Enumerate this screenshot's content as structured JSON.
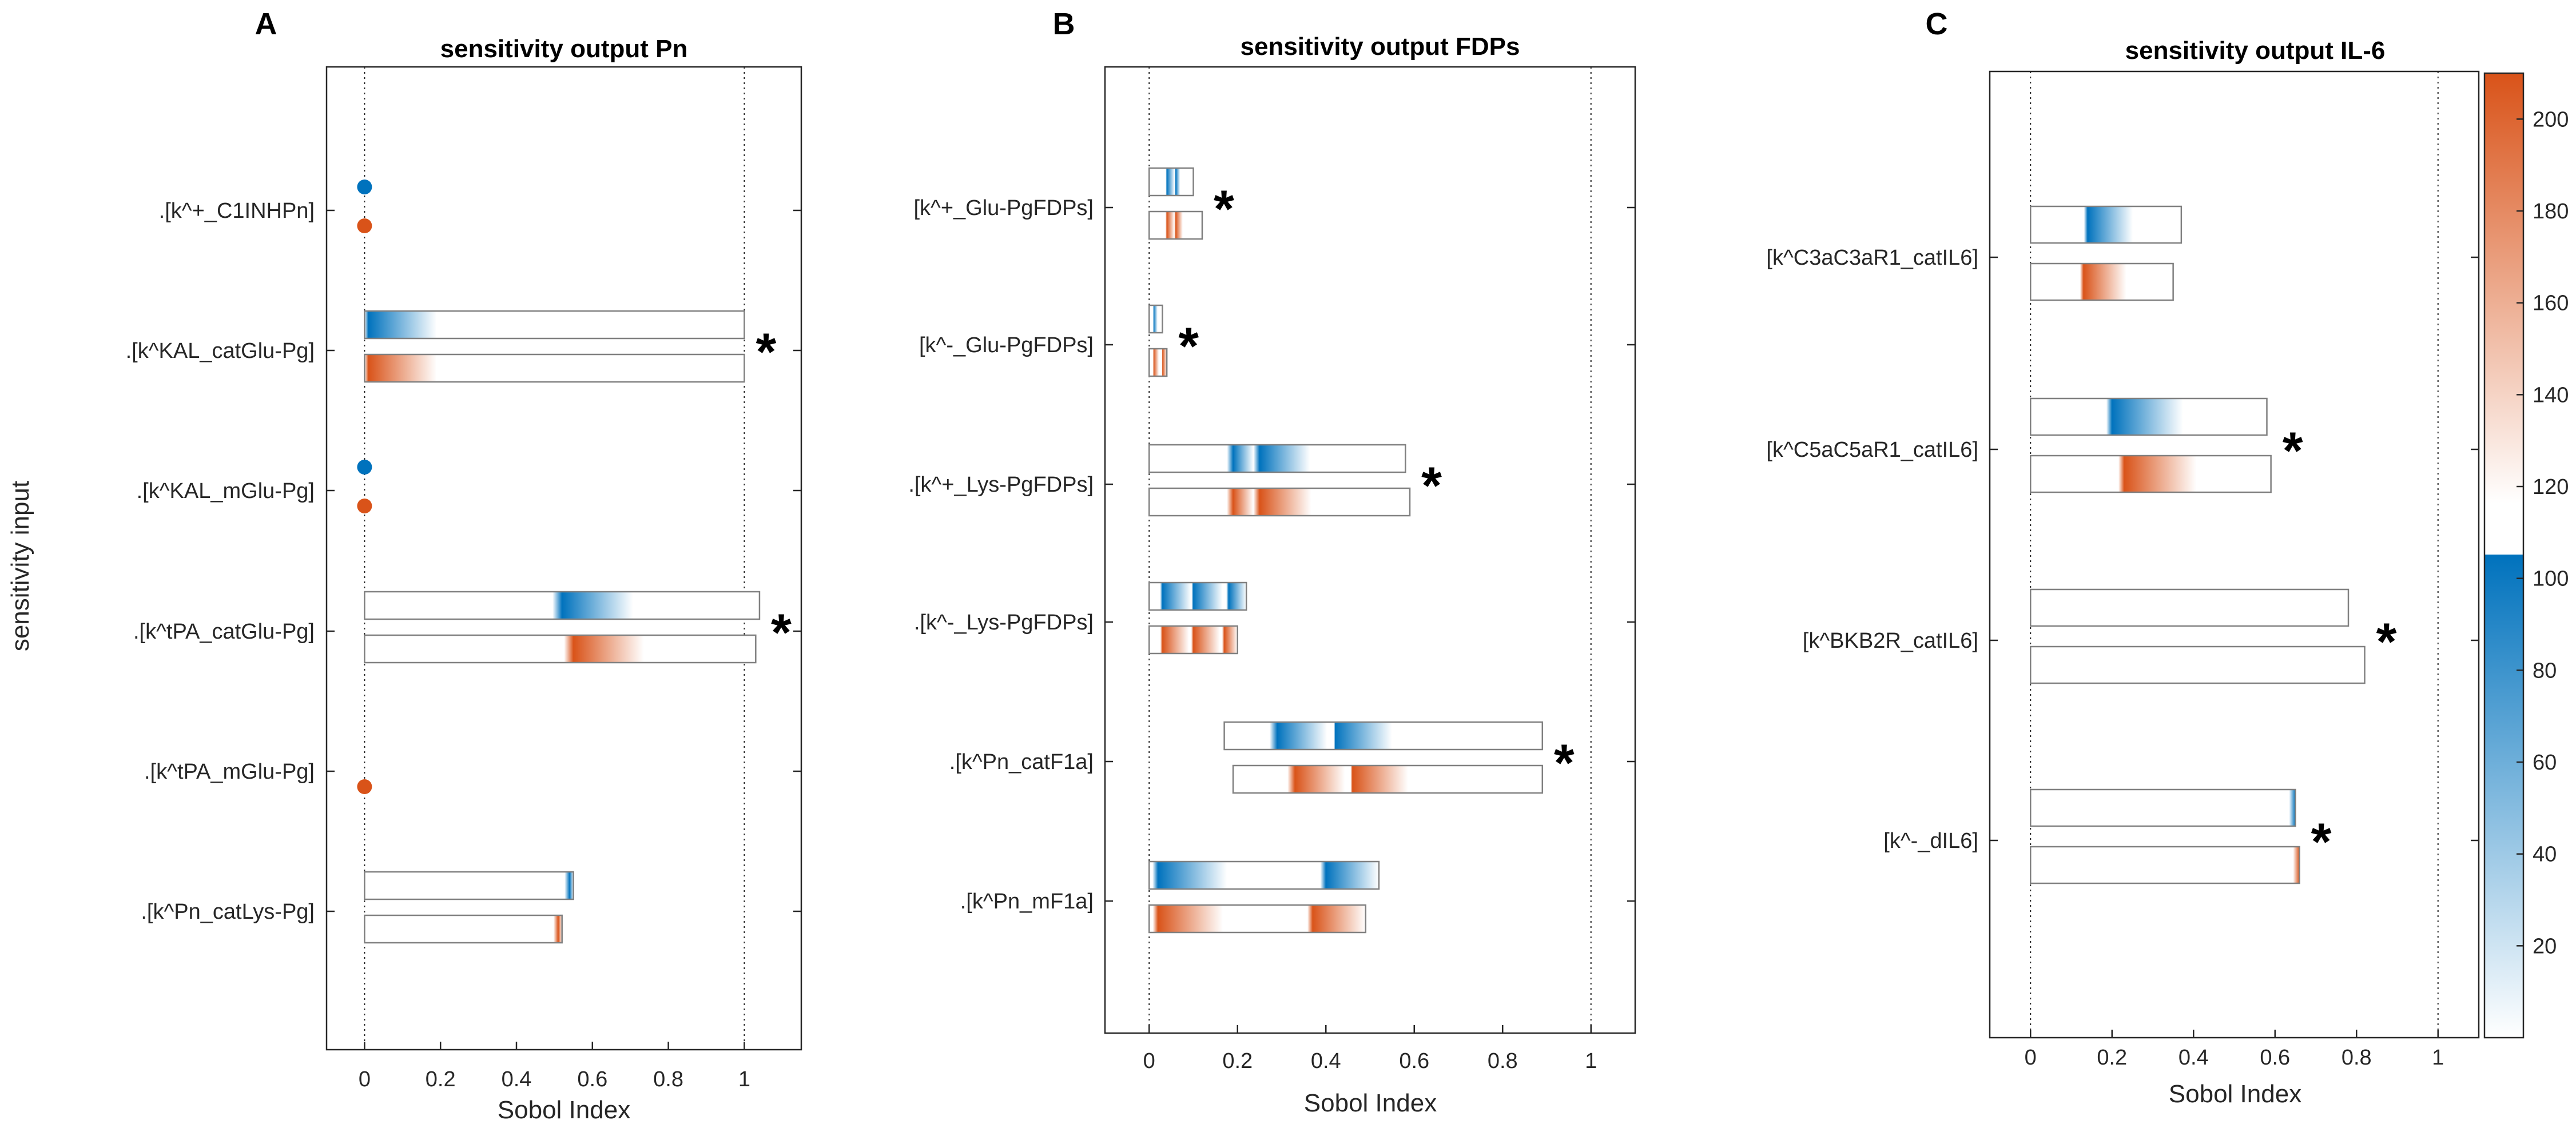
{
  "chart_data": [
    {
      "type": "range-bar",
      "panel_label": "A",
      "title": "sensitivity output Pn",
      "xlabel": "Sobol Index",
      "ylabel": "sensitivity input",
      "xlim": [
        -0.1,
        1.15
      ],
      "xticks": [
        "0",
        "0.2",
        "0.4",
        "0.6",
        "0.8",
        "1"
      ],
      "xtick_values": [
        0,
        0.2,
        0.4,
        0.6,
        0.8,
        1
      ],
      "ref_lines": [
        0,
        1
      ],
      "rows": [
        {
          "label": ".[k^+_C1INHPn]",
          "blue": {
            "min": 0,
            "max": 0,
            "peaks": [
              0
            ]
          },
          "orange": {
            "min": 0,
            "max": 0,
            "peaks": [
              0
            ]
          },
          "star": ""
        },
        {
          "label": ".[k^KAL_catGlu-Pg]",
          "blue": {
            "min": 0,
            "max": 1.0,
            "peaks": [
              0.01
            ]
          },
          "orange": {
            "min": 0,
            "max": 1.0,
            "peaks": [
              0.01
            ]
          },
          "star": "*"
        },
        {
          "label": ".[k^KAL_mGlu-Pg]",
          "blue": {
            "min": 0,
            "max": 0,
            "peaks": [
              0
            ]
          },
          "orange": {
            "min": 0,
            "max": 0,
            "peaks": [
              0
            ]
          },
          "star": ""
        },
        {
          "label": ".[k^tPA_catGlu-Pg]",
          "blue": {
            "min": 0,
            "max": 1.04,
            "peaks": [
              0.52
            ]
          },
          "orange": {
            "min": 0,
            "max": 1.03,
            "peaks": [
              0.55
            ]
          },
          "star": "*"
        },
        {
          "label": ".[k^tPA_mGlu-Pg]",
          "blue": null,
          "orange": {
            "min": 0,
            "max": 0,
            "peaks": [
              0
            ]
          },
          "star": ""
        },
        {
          "label": ".[k^Pn_catLys-Pg]",
          "blue": {
            "min": 0,
            "max": 0.55,
            "peaks": [
              0.54
            ]
          },
          "orange": {
            "min": 0,
            "max": 0.52,
            "peaks": [
              0.51
            ]
          },
          "star": ""
        }
      ]
    },
    {
      "type": "range-bar",
      "panel_label": "B",
      "title": "sensitivity output FDPs",
      "xlabel": "Sobol Index",
      "ylabel": "",
      "xlim": [
        -0.1,
        1.1
      ],
      "xticks": [
        "0",
        "0.2",
        "0.4",
        "0.6",
        "0.8",
        "1"
      ],
      "xtick_values": [
        0,
        0.2,
        0.4,
        0.6,
        0.8,
        1
      ],
      "ref_lines": [
        0,
        1
      ],
      "rows": [
        {
          "label": "[k^+_Glu-PgFDPs]",
          "blue": {
            "min": 0,
            "max": 0.1,
            "peaks": [
              0.04,
              0.06
            ]
          },
          "orange": {
            "min": 0,
            "max": 0.12,
            "peaks": [
              0.04,
              0.06
            ]
          },
          "star": "*"
        },
        {
          "label": "[k^-_Glu-PgFDPs]",
          "blue": {
            "min": 0,
            "max": 0.03,
            "peaks": [
              0.01
            ]
          },
          "orange": {
            "min": 0,
            "max": 0.04,
            "peaks": [
              0.01,
              0.03
            ]
          },
          "star": "*"
        },
        {
          "label": ".[k^+_Lys-PgFDPs]",
          "blue": {
            "min": 0,
            "max": 0.58,
            "peaks": [
              0.19,
              0.25
            ]
          },
          "orange": {
            "min": 0,
            "max": 0.59,
            "peaks": [
              0.19,
              0.25
            ]
          },
          "star": "*"
        },
        {
          "label": ".[k^-_Lys-PgFDPs]",
          "blue": {
            "min": 0,
            "max": 0.22,
            "peaks": [
              0.03,
              0.1,
              0.18
            ]
          },
          "orange": {
            "min": 0,
            "max": 0.2,
            "peaks": [
              0.03,
              0.1,
              0.17
            ]
          },
          "star": ""
        },
        {
          "label": ".[k^Pn_catF1a]",
          "blue": {
            "min": 0.17,
            "max": 0.89,
            "peaks": [
              0.29,
              0.42
            ]
          },
          "orange": {
            "min": 0.19,
            "max": 0.89,
            "peaks": [
              0.33,
              0.46
            ]
          },
          "star": "*"
        },
        {
          "label": ".[k^Pn_mF1a]",
          "blue": {
            "min": 0,
            "max": 0.52,
            "peaks": [
              0.02,
              0.4
            ]
          },
          "orange": {
            "min": 0,
            "max": 0.49,
            "peaks": [
              0.02,
              0.37
            ]
          },
          "star": ""
        }
      ]
    },
    {
      "type": "range-bar",
      "panel_label": "C",
      "title": "sensitivity output IL-6",
      "xlabel": "Sobol Index",
      "ylabel": "",
      "xlim": [
        -0.1,
        1.1
      ],
      "xticks": [
        "0",
        "0.2",
        "0.4",
        "0.6",
        "0.8",
        "1"
      ],
      "xtick_values": [
        0,
        0.2,
        0.4,
        0.6,
        0.8,
        1
      ],
      "ref_lines": [
        0,
        1
      ],
      "rows": [
        {
          "label": "[k^C3aC3aR1_catIL6]",
          "blue": {
            "min": 0,
            "max": 0.37,
            "peaks": [
              0.14
            ]
          },
          "orange": {
            "min": 0,
            "max": 0.35,
            "peaks": [
              0.13
            ]
          },
          "star": ""
        },
        {
          "label": "[k^C5aC5aR1_catIL6]",
          "blue": {
            "min": 0,
            "max": 0.58,
            "peaks": [
              0.2
            ]
          },
          "orange": {
            "min": 0,
            "max": 0.59,
            "peaks": [
              0.23
            ]
          },
          "star": "*"
        },
        {
          "label": "[k^BKB2R_catIL6]",
          "blue": {
            "min": 0,
            "max": 0.78,
            "peaks": []
          },
          "orange": {
            "min": 0,
            "max": 0.82,
            "peaks": []
          },
          "star": "*"
        },
        {
          "label": "[k^-_dIL6]",
          "blue": {
            "min": 0,
            "max": 0.65,
            "peaks": [
              0.65
            ]
          },
          "orange": {
            "min": 0,
            "max": 0.66,
            "peaks": [
              0.66
            ]
          },
          "star": "*"
        }
      ]
    }
  ],
  "colorbar": {
    "ticks": [
      "20",
      "40",
      "60",
      "80",
      "100",
      "120",
      "140",
      "160",
      "180",
      "200"
    ],
    "tick_values": [
      20,
      40,
      60,
      80,
      100,
      120,
      140,
      160,
      180,
      200
    ],
    "range": [
      0,
      210
    ],
    "split_value": 105,
    "blue_color": "#0072BD",
    "orange_color": "#D95319"
  }
}
